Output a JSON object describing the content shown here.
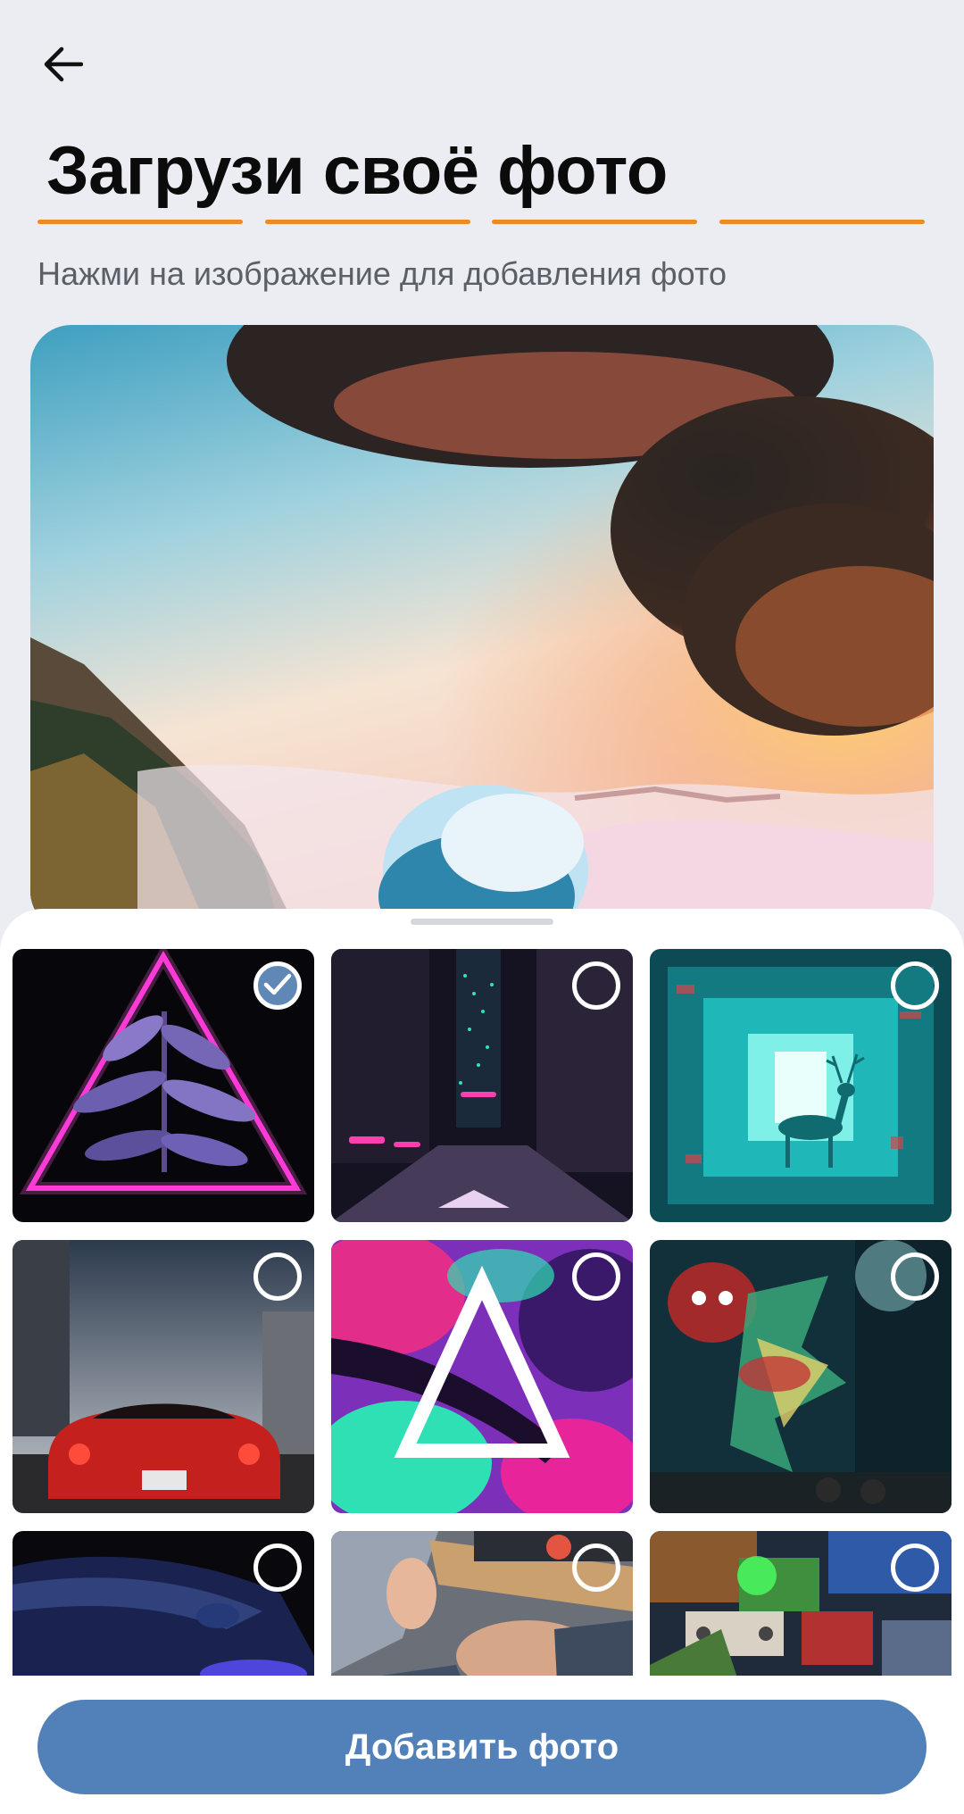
{
  "header": {
    "title": "Загрузи своё фото",
    "subtitle": "Нажми на изображение для добавления фото",
    "back_icon": "arrow-left-icon",
    "progress_steps": 4,
    "progress_color": "#ee8a23"
  },
  "gallery": {
    "items": [
      {
        "theme": "neon-triangle-plant",
        "selected": true
      },
      {
        "theme": "neon-city-street",
        "selected": false
      },
      {
        "theme": "cyan-deer-tunnel",
        "selected": false
      },
      {
        "theme": "red-sports-car",
        "selected": false
      },
      {
        "theme": "paint-triangle",
        "selected": false
      },
      {
        "theme": "graffiti-alley",
        "selected": false
      },
      {
        "theme": "blue-car-hood",
        "selected": false
      },
      {
        "theme": "desk-people",
        "selected": false
      },
      {
        "theme": "toy-collage",
        "selected": false
      }
    ],
    "selected_color": "#5f88b7"
  },
  "actions": {
    "primary_label": "Добавить фото",
    "primary_color": "#5181b8"
  }
}
